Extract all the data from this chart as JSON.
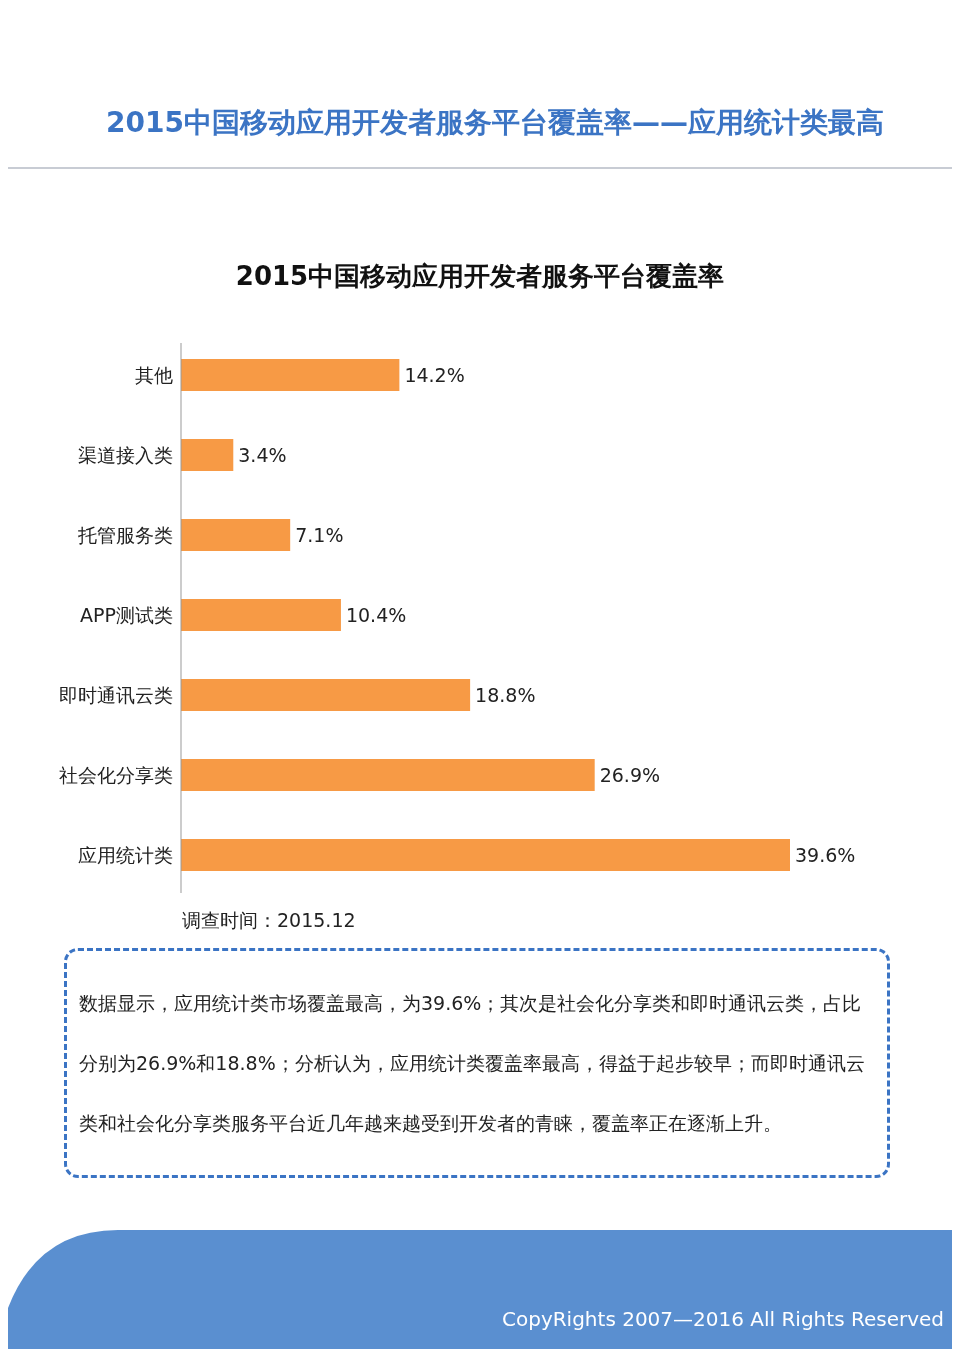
{
  "chart_data": {
    "type": "bar",
    "orientation": "horizontal",
    "title": "2015中国移动应用开发者服务平台覆盖率——应用统计类最高",
    "subtitle": "2015中国移动应用开发者服务平台覆盖率",
    "categories": [
      "其他",
      "渠道接入类",
      "托管服务类",
      "APP测试类",
      "即时通讯云类",
      "社会化分享类",
      "应用统计类"
    ],
    "values": [
      14.2,
      3.4,
      7.1,
      10.4,
      18.8,
      26.9,
      39.6
    ],
    "value_labels": [
      "14.2%",
      "3.4%",
      "7.1%",
      "10.4%",
      "18.8%",
      "26.9%",
      "39.6%"
    ],
    "color": "#f79a45",
    "annotations": [
      "调查时间：2015.12",
      "数据显示，应用统计类市场覆盖最高，为39.6%；其次是社会化分享类和即时通讯云类，占比分别为26.9%和18.8%；分析认为，应用统计类覆盖率最高，得益于起步较早；而即时通讯云类和社会化分享类服务平台近几年越来越受到开发者的青睐，覆盖率正在逐渐上升。",
      "CopyRights 2007—2016  All Rights Reserved"
    ]
  }
}
